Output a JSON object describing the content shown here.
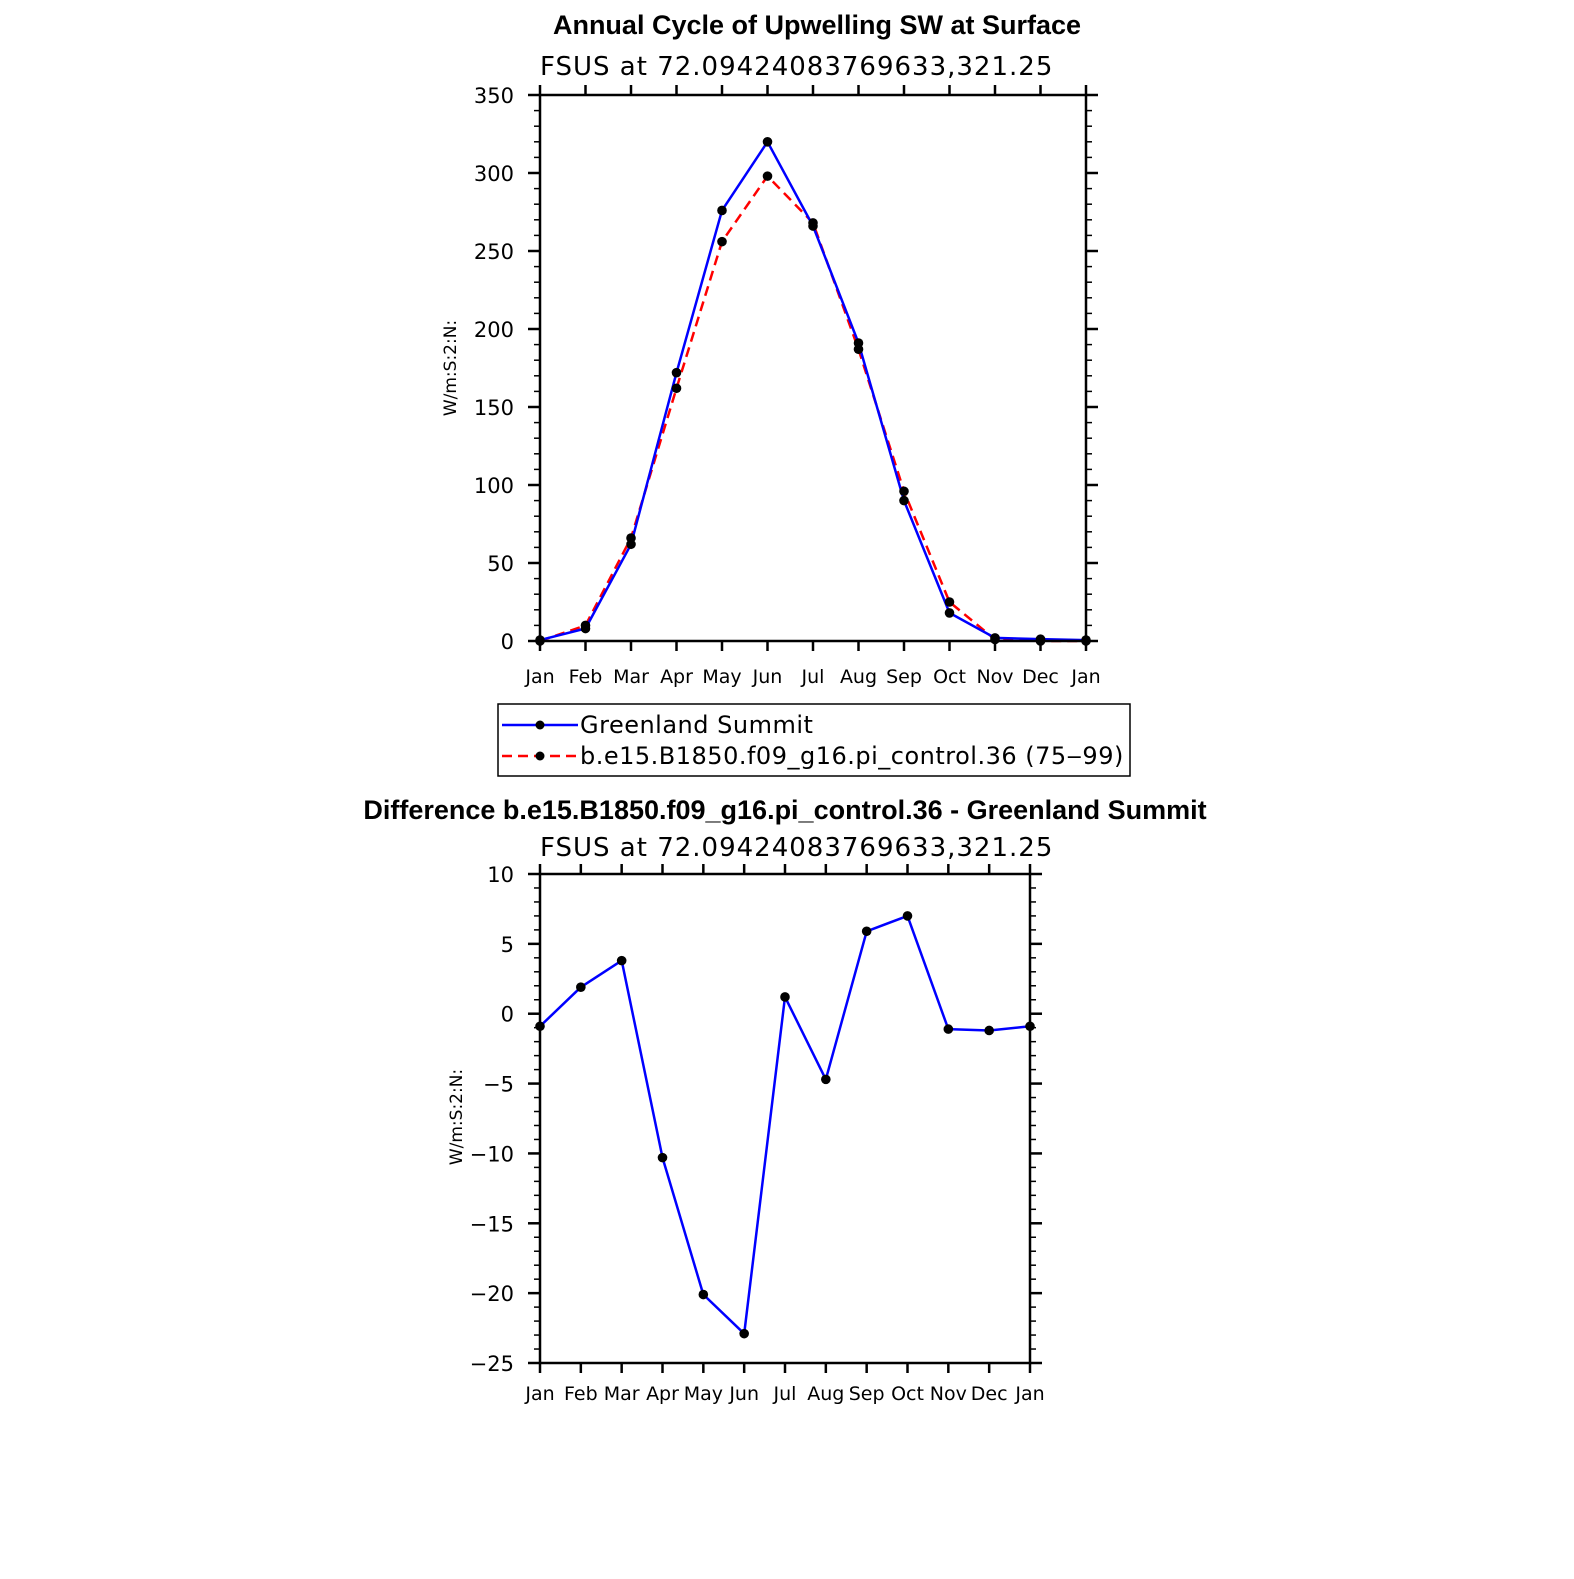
{
  "chart_data": [
    {
      "type": "line",
      "title": "Annual Cycle of Upwelling SW at Surface",
      "subtitle": "FSUS at 72.09424083769633,321.25",
      "ylabel": "W/m:S:2:N:",
      "xlabel": "",
      "categories": [
        "Jan",
        "Feb",
        "Mar",
        "Apr",
        "May",
        "Jun",
        "Jul",
        "Aug",
        "Sep",
        "Oct",
        "Nov",
        "Dec",
        "Jan"
      ],
      "ylim": [
        0,
        350
      ],
      "yticks": [
        "0",
        "50",
        "100",
        "150",
        "200",
        "250",
        "300",
        "350"
      ],
      "legend_position": "bottom",
      "series": [
        {
          "name": "Greenland Summit",
          "color": "#0000ff",
          "dash": "solid",
          "values": [
            0.6,
            8,
            62,
            172,
            276,
            320,
            266,
            191,
            90,
            18,
            2,
            1.2,
            0.6
          ]
        },
        {
          "name": "b.e15.B1850.f09_g16.pi_control.36 (75‒99)",
          "color": "#ff0000",
          "dash": "dashed",
          "values": [
            0,
            10,
            66,
            162,
            256,
            298,
            268,
            187,
            96,
            25,
            1,
            0,
            0
          ]
        }
      ]
    },
    {
      "type": "line",
      "title": "Difference b.e15.B1850.f09_g16.pi_control.36 - Greenland Summit",
      "subtitle": "FSUS at 72.09424083769633,321.25",
      "ylabel": "W/m:S:2:N:",
      "xlabel": "",
      "categories": [
        "Jan",
        "Feb",
        "Mar",
        "Apr",
        "May",
        "Jun",
        "Jul",
        "Aug",
        "Sep",
        "Oct",
        "Nov",
        "Dec",
        "Jan"
      ],
      "ylim": [
        -25,
        10
      ],
      "yticks": [
        "−25",
        "−20",
        "−15",
        "−10",
        "−5",
        "0",
        "5",
        "10"
      ],
      "series": [
        {
          "color": "#0000ff",
          "dash": "solid",
          "values": [
            -0.9,
            1.9,
            3.8,
            -10.3,
            -20.1,
            -22.9,
            1.2,
            -4.7,
            5.9,
            7.0,
            -1.1,
            -1.2,
            -0.9
          ]
        }
      ]
    }
  ]
}
